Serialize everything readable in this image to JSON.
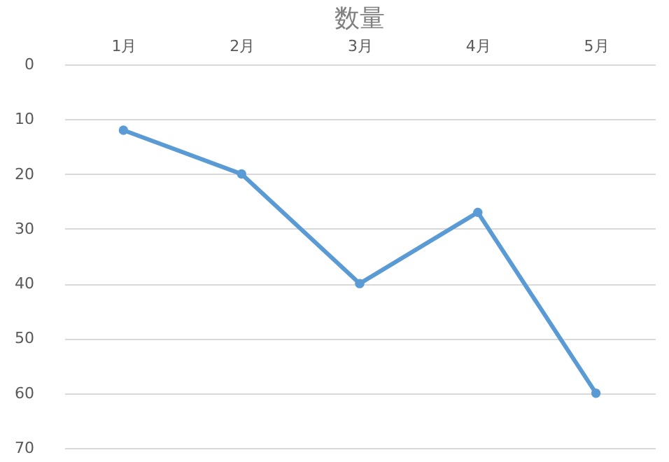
{
  "chart_data": {
    "type": "line",
    "title": "数量",
    "categories": [
      "1月",
      "2月",
      "3月",
      "4月",
      "5月"
    ],
    "series": [
      {
        "color": "#5b9bd5",
        "values": [
          12,
          20,
          40,
          27,
          60
        ]
      }
    ],
    "ylim": [
      70,
      0
    ],
    "yticks": [
      0,
      10,
      20,
      30,
      40,
      50,
      60,
      70
    ],
    "grid": "y",
    "marker": "circle",
    "line_style": "solid",
    "legend": false
  }
}
